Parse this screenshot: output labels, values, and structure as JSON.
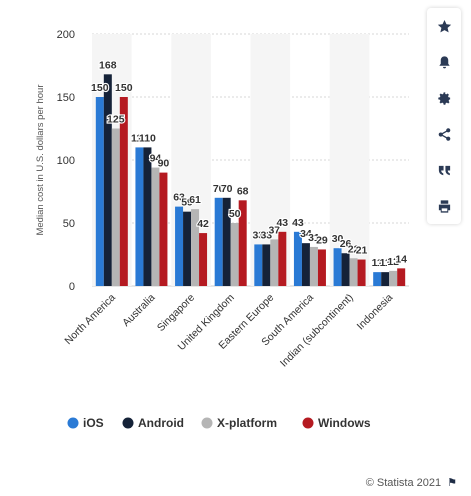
{
  "chart_data": {
    "type": "bar",
    "title": "",
    "xlabel": "",
    "ylabel": "Median cost in U.S. dollars per hour",
    "ylim": [
      0,
      200
    ],
    "yticks": [
      0,
      50,
      100,
      150,
      200
    ],
    "grid": true,
    "legend_position": "bottom",
    "categories": [
      "North America",
      "Australia",
      "Singapore",
      "United Kingdom",
      "Eastern Europe",
      "South America",
      "Indian (subcontinent)",
      "Indonesia"
    ],
    "series": [
      {
        "name": "iOS",
        "color": "#2a7ad5",
        "values": [
          150,
          110,
          63,
          70,
          33,
          43,
          30,
          11
        ]
      },
      {
        "name": "Android",
        "color": "#152238",
        "values": [
          168,
          110,
          59,
          70,
          33,
          34,
          26,
          11
        ]
      },
      {
        "name": "X-platform",
        "color": "#b5b5b5",
        "values": [
          125,
          94,
          61,
          50,
          37,
          31,
          22,
          12
        ]
      },
      {
        "name": "Windows",
        "color": "#b51a21",
        "values": [
          150,
          90,
          42,
          68,
          43,
          29,
          21,
          14
        ]
      }
    ]
  },
  "credit": {
    "text": "© Statista 2021"
  },
  "sidebar": {
    "buttons": [
      {
        "name": "star-icon"
      },
      {
        "name": "bell-icon"
      },
      {
        "name": "gear-icon"
      },
      {
        "name": "share-icon"
      },
      {
        "name": "quote-icon"
      },
      {
        "name": "print-icon"
      }
    ]
  }
}
